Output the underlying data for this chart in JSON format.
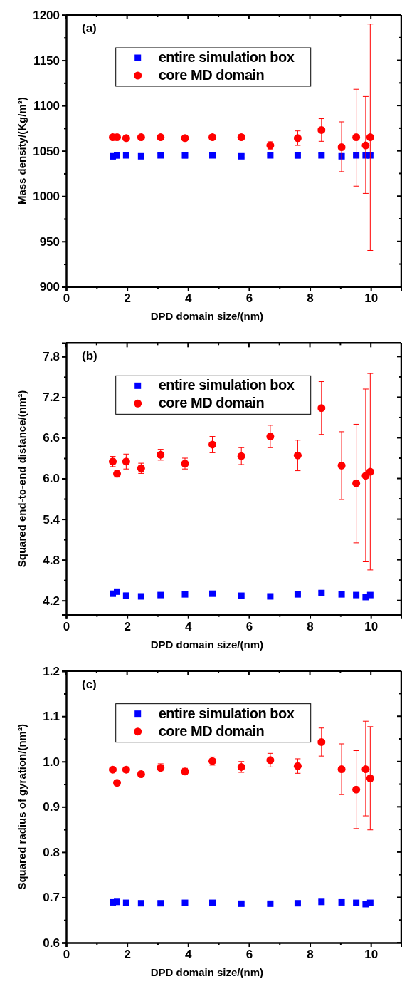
{
  "chart_data": [
    {
      "type": "scatter",
      "xlabel": "DPD domain size/(nm)",
      "ylabel": "Mass density/(Kg/m³)",
      "annotations": [
        "(a)"
      ],
      "legend": "top",
      "grid": false,
      "xlim": [
        0,
        11
      ],
      "xticks": [
        0,
        {
          "value": 1,
          "label": null
        },
        2,
        {
          "value": 3,
          "label": null
        },
        4,
        {
          "value": 5,
          "label": null
        },
        6,
        {
          "value": 7,
          "label": null
        },
        8,
        {
          "value": 9,
          "label": null
        },
        10
      ],
      "ylim": [
        900,
        1200
      ],
      "yticks": [
        900,
        {
          "value": 925,
          "label": null
        },
        950,
        {
          "value": 975,
          "label": null
        },
        1000,
        {
          "value": 1025,
          "label": null
        },
        1050,
        {
          "value": 1075,
          "label": null
        },
        1100,
        {
          "value": 1125,
          "label": null
        },
        1150,
        {
          "value": 1175,
          "label": null
        },
        1200
      ],
      "x": [
        1.53,
        1.67,
        1.97,
        2.46,
        3.1,
        3.9,
        4.8,
        5.75,
        6.7,
        7.6,
        8.38,
        9.04,
        9.52,
        9.83,
        9.98
      ],
      "series": [
        {
          "name": "entire simulation box",
          "color": "#0000ff",
          "marker": "square",
          "values": [
            1044,
            1045,
            1045,
            1044,
            1045,
            1045,
            1045,
            1044,
            1045,
            1045,
            1045,
            1044,
            1045,
            1045,
            1045
          ],
          "errors": [
            3,
            3,
            2,
            2,
            2,
            3,
            2,
            2,
            1,
            3,
            2,
            2,
            1,
            1,
            2
          ]
        },
        {
          "name": "core MD domain",
          "color": "#ff0000",
          "marker": "circle",
          "values": [
            1065,
            1065,
            1064,
            1065,
            1065,
            1064,
            1065,
            1065,
            1056,
            1064,
            1073,
            1054,
            1065,
            1056,
            1065
          ],
          "errors": [
            1,
            2,
            1,
            1,
            1,
            2,
            3,
            3,
            4,
            8,
            12.5,
            [
              1027,
              1082
            ],
            [
              1011,
              1118
            ],
            [
              1003,
              1110
            ],
            [
              940,
              1190
            ]
          ]
        }
      ]
    },
    {
      "type": "scatter",
      "xlabel": "DPD domain size/(nm)",
      "ylabel": "Squared end-to-end distance/(nm²)",
      "annotations": [
        "(b)"
      ],
      "legend": "top",
      "grid": false,
      "xlim": [
        0,
        11
      ],
      "xticks": [
        0,
        {
          "value": 1,
          "label": null
        },
        2,
        {
          "value": 3,
          "label": null
        },
        4,
        {
          "value": 5,
          "label": null
        },
        6,
        {
          "value": 7,
          "label": null
        },
        8,
        {
          "value": 9,
          "label": null
        },
        10
      ],
      "ylim": [
        3.99,
        8.0
      ],
      "yticks": [
        {
          "value": 4.2,
          "label": "4.2"
        },
        {
          "value": 4.5,
          "label": null
        },
        {
          "value": 4.8,
          "label": "4.8"
        },
        {
          "value": 5.1,
          "label": null
        },
        {
          "value": 5.4,
          "label": "5.4"
        },
        {
          "value": 5.7,
          "label": null
        },
        {
          "value": 6.0,
          "label": "6.0"
        },
        {
          "value": 6.3,
          "label": null
        },
        {
          "value": 6.6,
          "label": "6.6"
        },
        {
          "value": 6.9,
          "label": null
        },
        {
          "value": 7.2,
          "label": "7.2"
        },
        {
          "value": 7.5,
          "label": null
        },
        {
          "value": 7.8,
          "label": "7.8"
        }
      ],
      "x": [
        1.53,
        1.67,
        1.97,
        2.46,
        3.1,
        3.9,
        4.8,
        5.75,
        6.7,
        7.6,
        8.38,
        9.04,
        9.52,
        9.83,
        9.98
      ],
      "series": [
        {
          "name": "entire simulation box",
          "color": "#0000ff",
          "marker": "square",
          "values": [
            4.3,
            4.33,
            4.27,
            4.26,
            4.28,
            4.29,
            4.3,
            4.27,
            4.26,
            4.29,
            4.31,
            4.29,
            4.28,
            4.25,
            4.28
          ],
          "errors": [
            0.03,
            0.02,
            0.04,
            0.03,
            0.02,
            0.02,
            0.03,
            0.02,
            0.02,
            0.02,
            0.02,
            0.03,
            0.02,
            0.02,
            0.02
          ]
        },
        {
          "name": "core MD domain",
          "color": "#ff0000",
          "marker": "circle",
          "values": [
            6.25,
            6.07,
            6.25,
            6.15,
            6.35,
            6.22,
            6.5,
            6.33,
            6.62,
            6.34,
            7.04,
            6.19,
            5.93,
            6.04,
            6.1
          ],
          "errors": [
            0.075,
            0.05,
            0.11,
            0.075,
            0.08,
            0.08,
            0.12,
            0.125,
            0.165,
            0.225,
            0.39,
            [
              5.69,
              6.69
            ],
            [
              5.05,
              6.8
            ],
            [
              4.77,
              7.32
            ],
            [
              4.65,
              7.55
            ]
          ]
        }
      ]
    },
    {
      "type": "scatter",
      "xlabel": "DPD domain size/(nm)",
      "ylabel": "Squared radius of gyration/(nm²)",
      "annotations": [
        "(c)"
      ],
      "legend": "top",
      "grid": false,
      "xlim": [
        0,
        11
      ],
      "xticks": [
        0,
        {
          "value": 1,
          "label": null
        },
        2,
        {
          "value": 3,
          "label": null
        },
        4,
        {
          "value": 5,
          "label": null
        },
        6,
        {
          "value": 7,
          "label": null
        },
        8,
        {
          "value": 9,
          "label": null
        },
        10
      ],
      "ylim": [
        0.6,
        1.2
      ],
      "yticks": [
        {
          "value": 0.6,
          "label": "0.6"
        },
        {
          "value": 0.65,
          "label": null
        },
        {
          "value": 0.7,
          "label": "0.7"
        },
        {
          "value": 0.75,
          "label": null
        },
        {
          "value": 0.8,
          "label": "0.8"
        },
        {
          "value": 0.85,
          "label": null
        },
        {
          "value": 0.9,
          "label": "0.9"
        },
        {
          "value": 0.95,
          "label": null
        },
        {
          "value": 1.0,
          "label": "1.0"
        },
        {
          "value": 1.05,
          "label": null
        },
        {
          "value": 1.1,
          "label": "1.1"
        },
        {
          "value": 1.15,
          "label": null
        },
        {
          "value": 1.2,
          "label": "1.2"
        }
      ],
      "x": [
        1.53,
        1.67,
        1.97,
        2.46,
        3.1,
        3.9,
        4.8,
        5.75,
        6.7,
        7.6,
        8.38,
        9.04,
        9.52,
        9.83,
        9.98
      ],
      "series": [
        {
          "name": "entire simulation box",
          "color": "#0000ff",
          "marker": "square",
          "values": [
            0.689,
            0.69,
            0.688,
            0.687,
            0.687,
            0.688,
            0.688,
            0.686,
            0.686,
            0.687,
            0.69,
            0.689,
            0.688,
            0.685,
            0.688
          ],
          "errors": [
            0.003,
            0.003,
            0.003,
            0.003,
            0.003,
            0.003,
            0.003,
            0.003,
            0.003,
            0.003,
            0.003,
            0.003,
            0.003,
            0.003,
            0.003
          ]
        },
        {
          "name": "core MD domain",
          "color": "#ff0000",
          "marker": "circle",
          "values": [
            0.982,
            0.953,
            0.982,
            0.972,
            0.986,
            0.978,
            1.001,
            0.988,
            1.003,
            0.99,
            1.043,
            0.983,
            0.938,
            0.983,
            0.963
          ],
          "errors": [
            0.004,
            0.005,
            0.006,
            0.006,
            0.009,
            0.007,
            0.009,
            0.012,
            0.015,
            0.016,
            [
              1.012,
              1.074
            ],
            [
              0.927,
              1.039
            ],
            [
              0.852,
              1.024
            ],
            [
              0.88,
              1.089
            ],
            [
              0.849,
              1.077
            ]
          ]
        }
      ]
    }
  ]
}
